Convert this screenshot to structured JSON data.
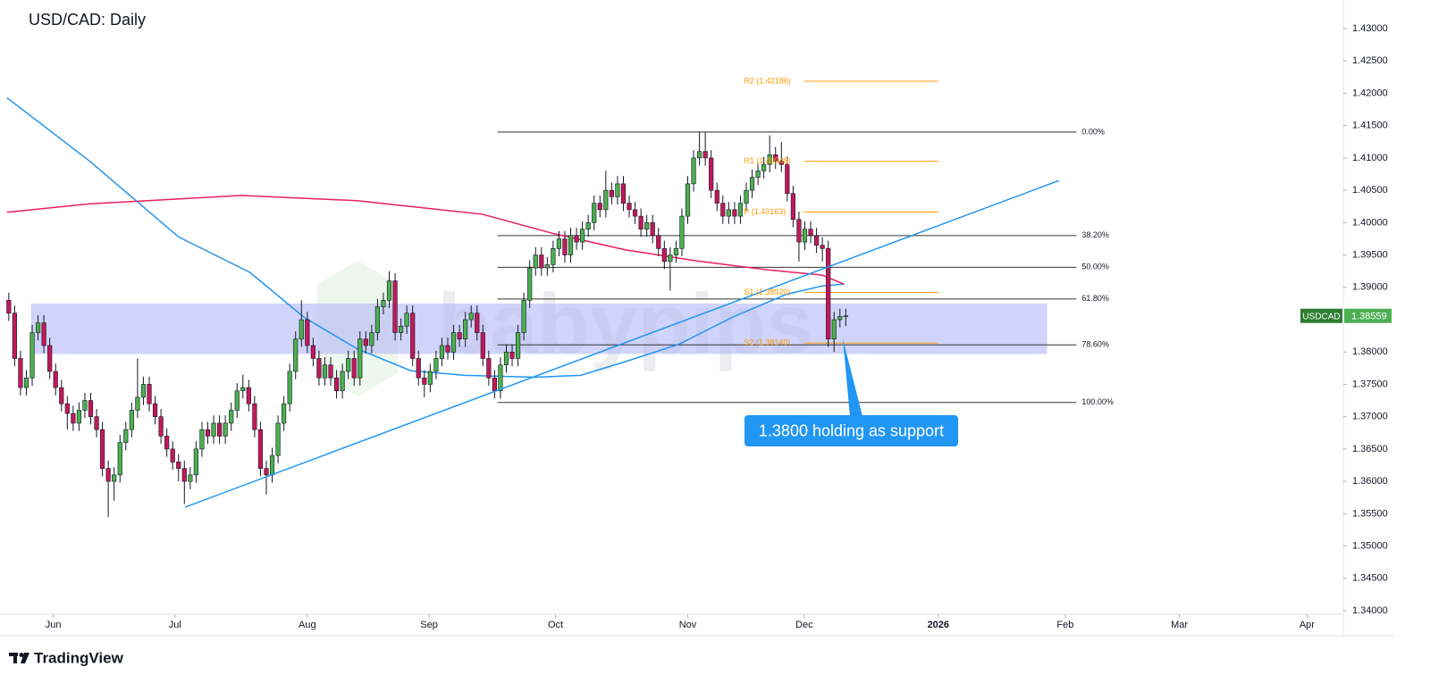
{
  "chart_data": {
    "type": "candlestick",
    "title": "USD/CAD: Daily",
    "symbol": "USDCAD",
    "last_price": 1.38559,
    "up_color": "#4caf50",
    "down_color": "#c2185b",
    "xlim": [
      -1.5,
      228
    ],
    "xticks": [
      {
        "value": 7.6,
        "label": "Jun"
      },
      {
        "value": 28.4,
        "label": "Jul"
      },
      {
        "value": 51,
        "label": "Aug"
      },
      {
        "value": 71.8,
        "label": "Sep"
      },
      {
        "value": 93.4,
        "label": "Oct"
      },
      {
        "value": 116,
        "label": "Nov"
      },
      {
        "value": 135.9,
        "label": "Dec"
      },
      {
        "value": 158.8,
        "label": "2026"
      },
      {
        "value": 180.5,
        "label": "Feb"
      },
      {
        "value": 200,
        "label": "Mar"
      },
      {
        "value": 221.8,
        "label": "Apr"
      }
    ],
    "ylim": [
      1.33945,
      1.43442
    ],
    "yticks": [
      {
        "value": 1.34,
        "label": "1.34000"
      },
      {
        "value": 1.345,
        "label": "1.34500"
      },
      {
        "value": 1.35,
        "label": "1.35000"
      },
      {
        "value": 1.355,
        "label": "1.35500"
      },
      {
        "value": 1.36,
        "label": "1.36000"
      },
      {
        "value": 1.365,
        "label": "1.36500"
      },
      {
        "value": 1.37,
        "label": "1.37000"
      },
      {
        "value": 1.375,
        "label": "1.37500"
      },
      {
        "value": 1.38,
        "label": "1.38000"
      },
      {
        "value": 1.385,
        "label": "1.38500"
      },
      {
        "value": 1.39,
        "label": "1.39000"
      },
      {
        "value": 1.395,
        "label": "1.39500"
      },
      {
        "value": 1.4,
        "label": "1.40000"
      },
      {
        "value": 1.405,
        "label": "1.40500"
      },
      {
        "value": 1.41,
        "label": "1.41000"
      },
      {
        "value": 1.415,
        "label": "1.41500"
      },
      {
        "value": 1.42,
        "label": "1.42000"
      },
      {
        "value": 1.425,
        "label": "1.42500"
      },
      {
        "value": 1.43,
        "label": "1.43000"
      }
    ],
    "ohlc": [
      [
        1.388,
        1.3892,
        1.3848,
        1.386
      ],
      [
        1.386,
        1.3872,
        1.3778,
        1.379
      ],
      [
        1.379,
        1.3802,
        1.3733,
        1.3745
      ],
      [
        1.3745,
        1.3772,
        1.3733,
        1.376
      ],
      [
        1.376,
        1.3842,
        1.3748,
        1.383
      ],
      [
        1.383,
        1.3857,
        1.3818,
        1.3845
      ],
      [
        1.3845,
        1.3857,
        1.3798,
        1.381
      ],
      [
        1.381,
        1.3822,
        1.3758,
        1.377
      ],
      [
        1.377,
        1.3782,
        1.3733,
        1.3745
      ],
      [
        1.3745,
        1.3757,
        1.3708,
        1.372
      ],
      [
        1.372,
        1.3732,
        1.368,
        1.3705
      ],
      [
        1.3705,
        1.3717,
        1.3678,
        1.369
      ],
      [
        1.369,
        1.3722,
        1.3678,
        1.371
      ],
      [
        1.371,
        1.3737,
        1.3698,
        1.3725
      ],
      [
        1.3725,
        1.3737,
        1.3688,
        1.37
      ],
      [
        1.37,
        1.3712,
        1.3668,
        1.368
      ],
      [
        1.368,
        1.3692,
        1.3608,
        1.362
      ],
      [
        1.362,
        1.3632,
        1.3545,
        1.36
      ],
      [
        1.36,
        1.3622,
        1.357,
        1.361
      ],
      [
        1.361,
        1.3672,
        1.3598,
        1.366
      ],
      [
        1.366,
        1.3692,
        1.3648,
        1.368
      ],
      [
        1.368,
        1.3722,
        1.3668,
        1.371
      ],
      [
        1.371,
        1.379,
        1.3698,
        1.373
      ],
      [
        1.373,
        1.3762,
        1.3718,
        1.375
      ],
      [
        1.375,
        1.3762,
        1.3708,
        1.372
      ],
      [
        1.372,
        1.3732,
        1.3688,
        1.37
      ],
      [
        1.37,
        1.3712,
        1.3658,
        1.367
      ],
      [
        1.367,
        1.3682,
        1.3638,
        1.365
      ],
      [
        1.365,
        1.3662,
        1.3618,
        1.363
      ],
      [
        1.363,
        1.3642,
        1.36,
        1.362
      ],
      [
        1.362,
        1.3632,
        1.3565,
        1.36
      ],
      [
        1.36,
        1.3622,
        1.3588,
        1.361
      ],
      [
        1.361,
        1.3662,
        1.3598,
        1.365
      ],
      [
        1.365,
        1.3692,
        1.3638,
        1.368
      ],
      [
        1.368,
        1.3692,
        1.3658,
        1.367
      ],
      [
        1.367,
        1.3702,
        1.3658,
        1.369
      ],
      [
        1.369,
        1.3702,
        1.3658,
        1.367
      ],
      [
        1.367,
        1.3702,
        1.3658,
        1.369
      ],
      [
        1.369,
        1.3722,
        1.3678,
        1.371
      ],
      [
        1.371,
        1.3752,
        1.3698,
        1.374
      ],
      [
        1.374,
        1.3765,
        1.3728,
        1.3745
      ],
      [
        1.3745,
        1.3757,
        1.3708,
        1.372
      ],
      [
        1.372,
        1.3732,
        1.3668,
        1.368
      ],
      [
        1.368,
        1.3692,
        1.3608,
        1.362
      ],
      [
        1.362,
        1.3632,
        1.358,
        1.361
      ],
      [
        1.361,
        1.3652,
        1.3598,
        1.364
      ],
      [
        1.364,
        1.3702,
        1.3628,
        1.369
      ],
      [
        1.369,
        1.3732,
        1.3678,
        1.372
      ],
      [
        1.372,
        1.3782,
        1.3708,
        1.377
      ],
      [
        1.377,
        1.3832,
        1.3758,
        1.382
      ],
      [
        1.382,
        1.388,
        1.3808,
        1.385
      ],
      [
        1.385,
        1.3862,
        1.3798,
        1.381
      ],
      [
        1.381,
        1.3822,
        1.3778,
        1.379
      ],
      [
        1.379,
        1.3802,
        1.3748,
        1.376
      ],
      [
        1.376,
        1.3792,
        1.3748,
        1.378
      ],
      [
        1.378,
        1.3792,
        1.3748,
        1.376
      ],
      [
        1.376,
        1.3772,
        1.3728,
        1.374
      ],
      [
        1.374,
        1.3782,
        1.3728,
        1.377
      ],
      [
        1.377,
        1.3802,
        1.3758,
        1.379
      ],
      [
        1.379,
        1.3802,
        1.3748,
        1.376
      ],
      [
        1.376,
        1.3832,
        1.3748,
        1.382
      ],
      [
        1.382,
        1.3832,
        1.3798,
        1.381
      ],
      [
        1.381,
        1.3842,
        1.3798,
        1.383
      ],
      [
        1.383,
        1.3882,
        1.3818,
        1.387
      ],
      [
        1.387,
        1.3892,
        1.3858,
        1.388
      ],
      [
        1.388,
        1.3925,
        1.3868,
        1.391
      ],
      [
        1.391,
        1.3922,
        1.3818,
        1.383
      ],
      [
        1.383,
        1.3852,
        1.3818,
        1.384
      ],
      [
        1.384,
        1.3872,
        1.3828,
        1.386
      ],
      [
        1.386,
        1.3872,
        1.3778,
        1.379
      ],
      [
        1.379,
        1.3802,
        1.3748,
        1.376
      ],
      [
        1.376,
        1.3772,
        1.373,
        1.375
      ],
      [
        1.375,
        1.3782,
        1.3738,
        1.377
      ],
      [
        1.377,
        1.3802,
        1.3758,
        1.379
      ],
      [
        1.379,
        1.3822,
        1.3778,
        1.381
      ],
      [
        1.381,
        1.3822,
        1.3788,
        1.38
      ],
      [
        1.38,
        1.3842,
        1.3788,
        1.383
      ],
      [
        1.383,
        1.3842,
        1.3808,
        1.382
      ],
      [
        1.382,
        1.3862,
        1.3808,
        1.385
      ],
      [
        1.385,
        1.3872,
        1.3838,
        1.386
      ],
      [
        1.386,
        1.3872,
        1.3818,
        1.383
      ],
      [
        1.383,
        1.3842,
        1.3778,
        1.379
      ],
      [
        1.379,
        1.3802,
        1.3748,
        1.376
      ],
      [
        1.376,
        1.3772,
        1.3728,
        1.374
      ],
      [
        1.374,
        1.3792,
        1.3728,
        1.378
      ],
      [
        1.378,
        1.3812,
        1.3768,
        1.38
      ],
      [
        1.38,
        1.3812,
        1.3778,
        1.379
      ],
      [
        1.379,
        1.3842,
        1.3778,
        1.383
      ],
      [
        1.383,
        1.3892,
        1.3818,
        1.388
      ],
      [
        1.388,
        1.3942,
        1.3868,
        1.393
      ],
      [
        1.393,
        1.3962,
        1.3918,
        1.395
      ],
      [
        1.395,
        1.3962,
        1.3918,
        1.393
      ],
      [
        1.393,
        1.3947,
        1.3918,
        1.3935
      ],
      [
        1.3935,
        1.3972,
        1.3923,
        1.396
      ],
      [
        1.396,
        1.3987,
        1.3948,
        1.3975
      ],
      [
        1.3975,
        1.3987,
        1.3938,
        1.395
      ],
      [
        1.395,
        1.3992,
        1.3938,
        1.398
      ],
      [
        1.398,
        1.3992,
        1.3958,
        1.397
      ],
      [
        1.397,
        1.4002,
        1.3958,
        1.399
      ],
      [
        1.399,
        1.4012,
        1.3978,
        1.4
      ],
      [
        1.4,
        1.4042,
        1.3988,
        1.403
      ],
      [
        1.403,
        1.4042,
        1.4008,
        1.402
      ],
      [
        1.402,
        1.408,
        1.4008,
        1.405
      ],
      [
        1.405,
        1.4062,
        1.4028,
        1.404
      ],
      [
        1.404,
        1.4072,
        1.4028,
        1.406
      ],
      [
        1.406,
        1.4072,
        1.4018,
        1.403
      ],
      [
        1.403,
        1.4042,
        1.4008,
        1.402
      ],
      [
        1.402,
        1.4032,
        1.3998,
        1.401
      ],
      [
        1.401,
        1.4022,
        1.3978,
        1.399
      ],
      [
        1.399,
        1.4012,
        1.3978,
        1.4
      ],
      [
        1.4,
        1.4012,
        1.3968,
        1.398
      ],
      [
        1.398,
        1.3992,
        1.3948,
        1.396
      ],
      [
        1.396,
        1.3972,
        1.3928,
        1.394
      ],
      [
        1.394,
        1.3962,
        1.3895,
        1.395
      ],
      [
        1.395,
        1.3972,
        1.3938,
        1.396
      ],
      [
        1.396,
        1.4022,
        1.3948,
        1.401
      ],
      [
        1.401,
        1.4072,
        1.3998,
        1.406
      ],
      [
        1.406,
        1.4112,
        1.4048,
        1.41
      ],
      [
        1.41,
        1.414,
        1.4088,
        1.411
      ],
      [
        1.411,
        1.414,
        1.4088,
        1.41
      ],
      [
        1.41,
        1.4112,
        1.4038,
        1.405
      ],
      [
        1.405,
        1.4062,
        1.4018,
        1.403
      ],
      [
        1.403,
        1.4042,
        1.3998,
        1.401
      ],
      [
        1.401,
        1.4032,
        1.3998,
        1.402
      ],
      [
        1.402,
        1.4032,
        1.3998,
        1.401
      ],
      [
        1.401,
        1.4042,
        1.3998,
        1.403
      ],
      [
        1.403,
        1.4062,
        1.4018,
        1.405
      ],
      [
        1.405,
        1.4082,
        1.4038,
        1.407
      ],
      [
        1.407,
        1.4092,
        1.4058,
        1.408
      ],
      [
        1.408,
        1.4102,
        1.4068,
        1.409
      ],
      [
        1.409,
        1.4135,
        1.4078,
        1.4105
      ],
      [
        1.4105,
        1.4117,
        1.4083,
        1.4095
      ],
      [
        1.4095,
        1.4125,
        1.4078,
        1.409
      ],
      [
        1.409,
        1.4102,
        1.4033,
        1.4045
      ],
      [
        1.4045,
        1.4057,
        1.3993,
        1.4005
      ],
      [
        1.4005,
        1.4017,
        1.394,
        1.397
      ],
      [
        1.397,
        1.4002,
        1.3958,
        1.399
      ],
      [
        1.399,
        1.4002,
        1.3968,
        1.398
      ],
      [
        1.398,
        1.3992,
        1.3953,
        1.3965
      ],
      [
        1.3965,
        1.3977,
        1.394,
        1.396
      ],
      [
        1.396,
        1.3972,
        1.3808,
        1.382
      ],
      [
        1.382,
        1.3862,
        1.38,
        1.385
      ],
      [
        1.385,
        1.3867,
        1.3838,
        1.3855
      ],
      [
        1.3855,
        1.3867,
        1.384,
        1.38559
      ]
    ],
    "lines": [
      {
        "color": "#2196f3",
        "x": [
          -0.3,
          13.7,
          29,
          41.2,
          50.4,
          59.5,
          68.7,
          77.9,
          90.1,
          97.7,
          105.3,
          114.5,
          123.7,
          132.8,
          138.9,
          142.7
        ],
        "values": [
          1.4193,
          1.4096,
          1.3978,
          1.3923,
          1.3854,
          1.3805,
          1.3771,
          1.3764,
          1.3761,
          1.3764,
          1.3785,
          1.3812,
          1.3854,
          1.3889,
          1.3902,
          1.3905
        ]
      },
      {
        "color": "#e91e63",
        "x": [
          -0.3,
          13.7,
          39.7,
          59.5,
          80.9,
          93.1,
          105.3,
          117.4,
          129.7,
          138.9,
          142.7
        ],
        "values": [
          1.4016,
          1.4029,
          1.4042,
          1.4034,
          1.4013,
          1.3983,
          1.3958,
          1.3941,
          1.3927,
          1.3919,
          1.3905
        ]
      }
    ],
    "trendline": {
      "color": "#2196f3",
      "x": [
        30.1,
        179.4
      ],
      "values": [
        1.356,
        1.4065
      ]
    },
    "zone": {
      "color": "#b3b8f7",
      "x": [
        3.8,
        177.4
      ],
      "values": [
        1.3797,
        1.3875
      ]
    },
    "fibonacci": {
      "color": "#333333",
      "x": [
        83.5,
        182.4
      ],
      "levels": [
        {
          "value": 1.414,
          "label": "0.00%"
        },
        {
          "value": 1.398,
          "label": "38.20%"
        },
        {
          "value": 1.3931,
          "label": "50.00%"
        },
        {
          "value": 1.3882,
          "label": "61.80%"
        },
        {
          "value": 1.3811,
          "label": "78.60%"
        },
        {
          "value": 1.3722,
          "label": "100.00%"
        }
      ]
    },
    "pivots": {
      "color": "#ff9800",
      "label_x": 125.6,
      "x": [
        135.9,
        158.8
      ],
      "levels": [
        {
          "value": 1.42186,
          "label": "R2 (1.42186)"
        },
        {
          "value": 1.40948,
          "label": "R1 (1.40948)"
        },
        {
          "value": 1.40163,
          "label": "P (1.40163)"
        },
        {
          "value": 1.3892,
          "label": "S1 (1.38920)"
        },
        {
          "value": 1.3814,
          "label": "S2 (1.38140)"
        }
      ]
    },
    "annotation": {
      "text": "1.3800 holding as support",
      "x": 142.5,
      "value": 1.382,
      "color": "#2196f3"
    },
    "watermark": "babypips",
    "brand": "TradingView"
  }
}
